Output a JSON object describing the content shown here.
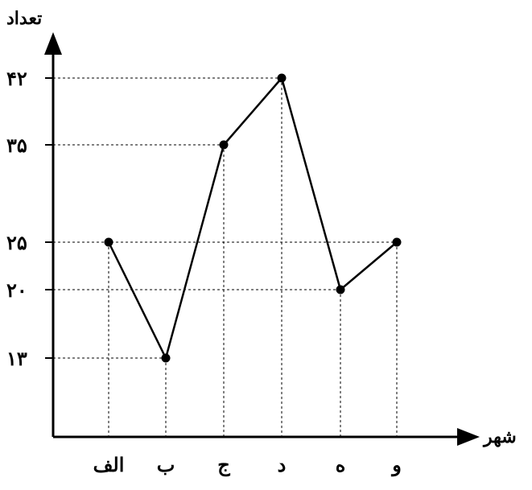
{
  "chart_data": {
    "type": "line",
    "ylabel": "تعداد",
    "xlabel": "شهر",
    "categories": [
      "الف",
      "ب",
      "ج",
      "د",
      "ه",
      "و"
    ],
    "values": [
      25,
      13,
      35,
      42,
      20,
      25
    ],
    "yticks": [
      13,
      20,
      25,
      35,
      42
    ],
    "ytick_labels": [
      "۱۳",
      "۲۰",
      "۲۵",
      "۳۵",
      "۴۲"
    ],
    "grid": "dashed guide lines from points to axes",
    "legend": "none"
  }
}
